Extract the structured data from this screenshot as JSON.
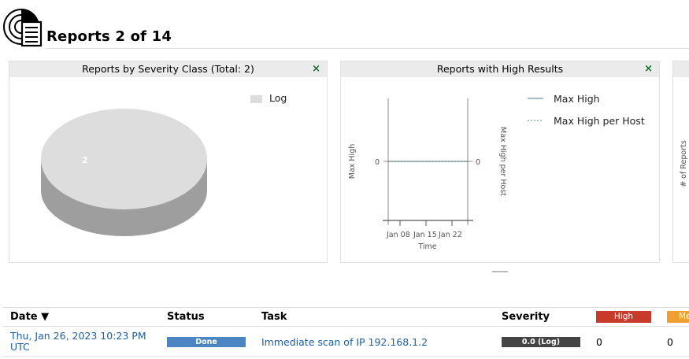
{
  "header": {
    "title": "Reports 2 of 14",
    "logo": "reports-radar-icon"
  },
  "panels": {
    "severity": {
      "title": "Reports by Severity Class (Total: 2)",
      "close": "×",
      "legend": [
        {
          "label": "Log",
          "color": "#dddddd"
        }
      ],
      "pie_label": "2"
    },
    "high": {
      "title": "Reports with High Results",
      "close": "×",
      "legend": [
        {
          "label": "Max High",
          "style": "solid",
          "color": "#4a7a8a"
        },
        {
          "label": "Max High per Host",
          "style": "dashed",
          "color": "#4a7a8a"
        }
      ],
      "y_left_label": "Max High",
      "y_right_label": "Max High per Host",
      "x_label": "Time",
      "y_left_tick": "0",
      "y_right_tick": "0",
      "x_ticks": [
        "Jan 08",
        "Jan 15",
        "Jan 22"
      ]
    },
    "third": {
      "y_label": "# of Reports"
    }
  },
  "table": {
    "headers": {
      "date": "Date ▼",
      "status": "Status",
      "task": "Task",
      "severity": "Severity",
      "high": "High",
      "medium": "Medium"
    },
    "colors": {
      "high": "#c83a2a",
      "medium": "#f0a030",
      "status": "#4c86c2",
      "severity": "#444444"
    },
    "rows": [
      {
        "date_line1": "Thu, Jan 26, 2023 10:23 PM",
        "date_line2": "UTC",
        "status": "Done",
        "task": "Immediate scan of IP 192.168.1.2",
        "severity": "0.0 (Log)",
        "high": "0",
        "medium": "0"
      }
    ]
  }
}
